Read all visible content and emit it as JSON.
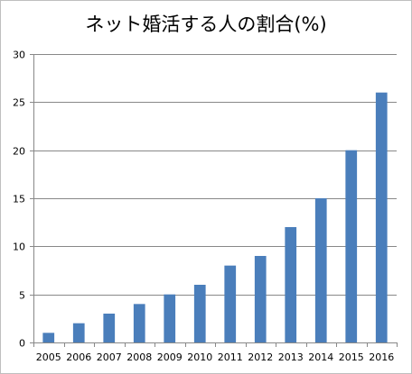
{
  "chart_data": {
    "type": "bar",
    "title": "ネット婚活する人の割合(%)",
    "categories": [
      "2005",
      "2006",
      "2007",
      "2008",
      "2009",
      "2010",
      "2011",
      "2012",
      "2013",
      "2014",
      "2015",
      "2016"
    ],
    "values": [
      1,
      2,
      3,
      4,
      5,
      6,
      8,
      9,
      12,
      15,
      20,
      26
    ],
    "xlabel": "",
    "ylabel": "",
    "ylim": [
      0,
      30
    ],
    "yticks": [
      0,
      5,
      10,
      15,
      20,
      25,
      30
    ],
    "grid": true,
    "legend": "none",
    "bar_color": "#4a7ebb",
    "grid_color": "#888888"
  }
}
